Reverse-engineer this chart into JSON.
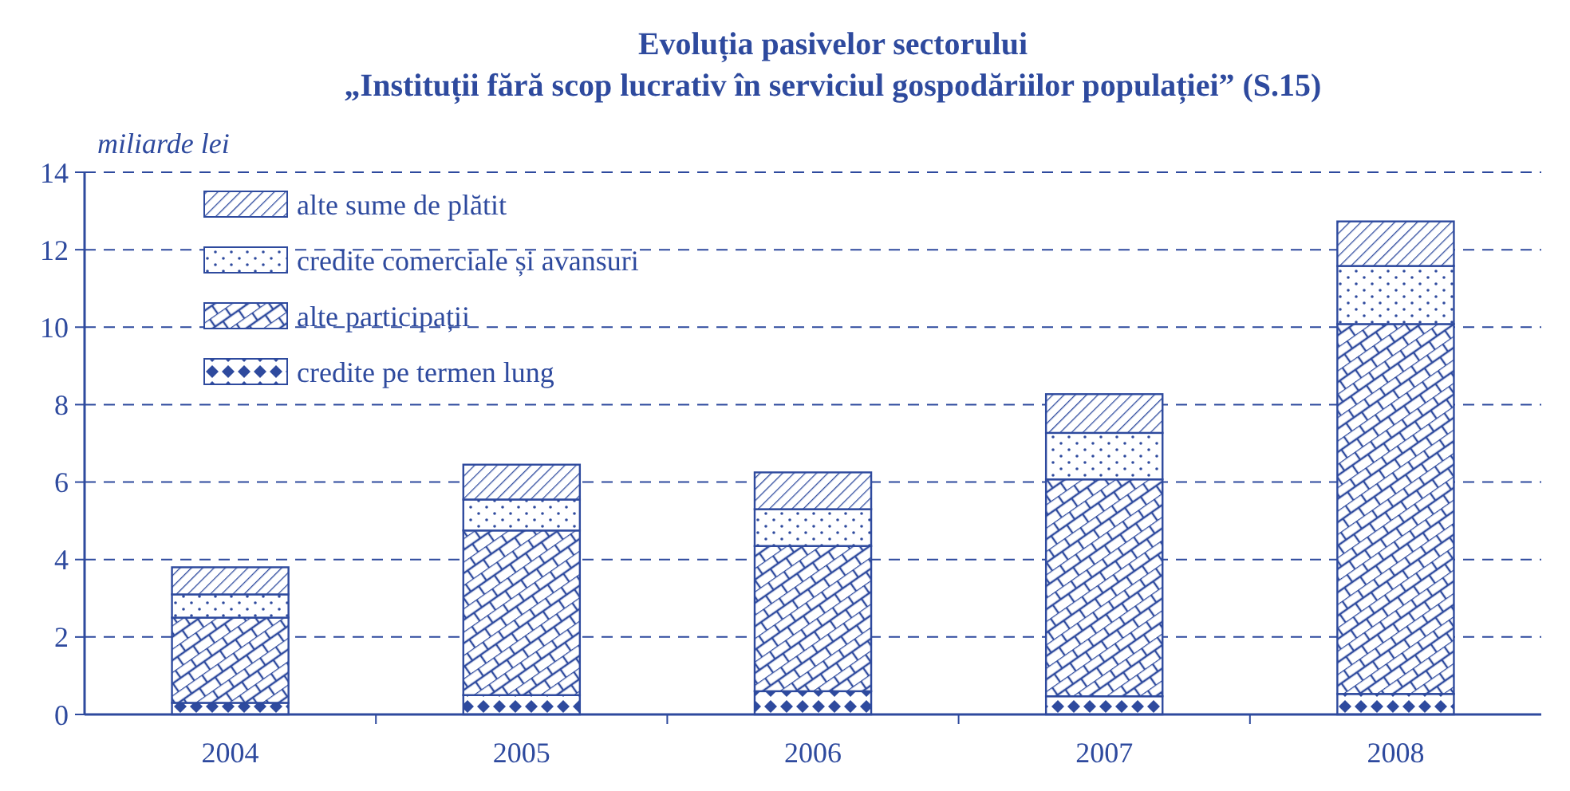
{
  "chart_data": {
    "type": "bar",
    "title": "Evoluția pasivelor sectorului",
    "subtitle": "„Instituții fără scop lucrativ în serviciul gospodăriilor populației” (S.15)",
    "ylabel": "miliarde lei",
    "categories": [
      "2004",
      "2005",
      "2006",
      "2007",
      "2008"
    ],
    "stacked": true,
    "ylim": [
      0,
      14
    ],
    "yticks": [
      0,
      2,
      4,
      6,
      8,
      10,
      12,
      14
    ],
    "grid": "y",
    "legend": "top left",
    "series": [
      {
        "name": "credite pe termen lung",
        "color": "#2e4a9e",
        "values": [
          0.3,
          0.5,
          0.6,
          0.47,
          0.53
        ]
      },
      {
        "name": "alte participații",
        "color": "#2e4a9e",
        "values": [
          2.2,
          4.25,
          3.75,
          5.6,
          9.55
        ]
      },
      {
        "name": "credite comerciale și avansuri",
        "color": "#2e4a9e",
        "values": [
          0.6,
          0.8,
          0.95,
          1.2,
          1.5
        ]
      },
      {
        "name": "alte sume de plătit",
        "color": "#2e4a9e",
        "values": [
          0.7,
          0.9,
          0.95,
          1.0,
          1.15
        ]
      }
    ]
  }
}
